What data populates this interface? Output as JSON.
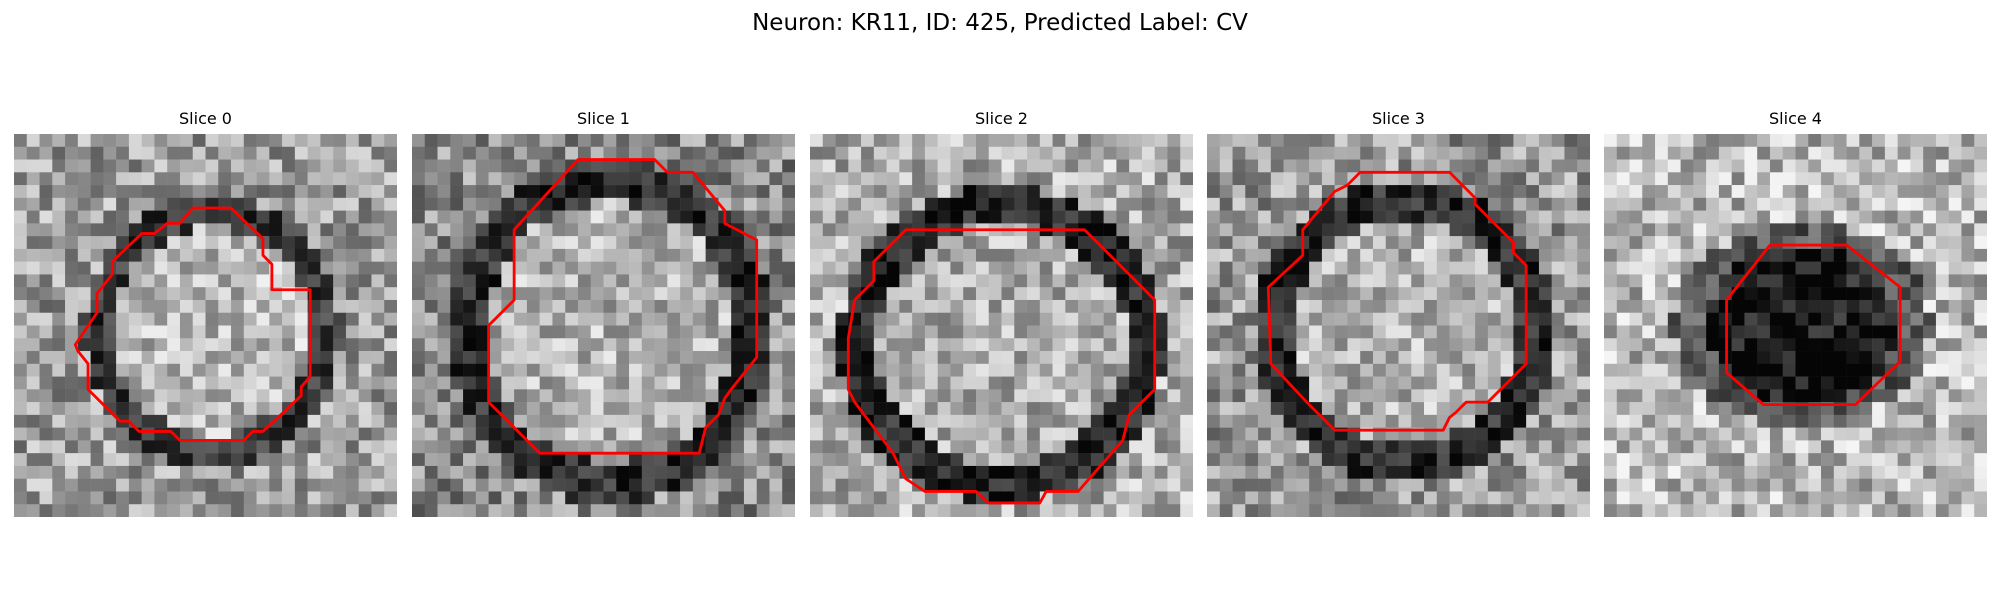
{
  "title": "Neuron: KR11, ID: 425, Predicted Label: CV",
  "panels": [
    {
      "label": "Slice 0"
    },
    {
      "label": "Slice 1"
    },
    {
      "label": "Slice 2"
    },
    {
      "label": "Slice 3"
    },
    {
      "label": "Slice 4"
    }
  ],
  "colors": {
    "contour": "#ff0000",
    "background": "#ffffff"
  },
  "image_style": "grayscale 30x30 microscopy patch with red cell contour"
}
